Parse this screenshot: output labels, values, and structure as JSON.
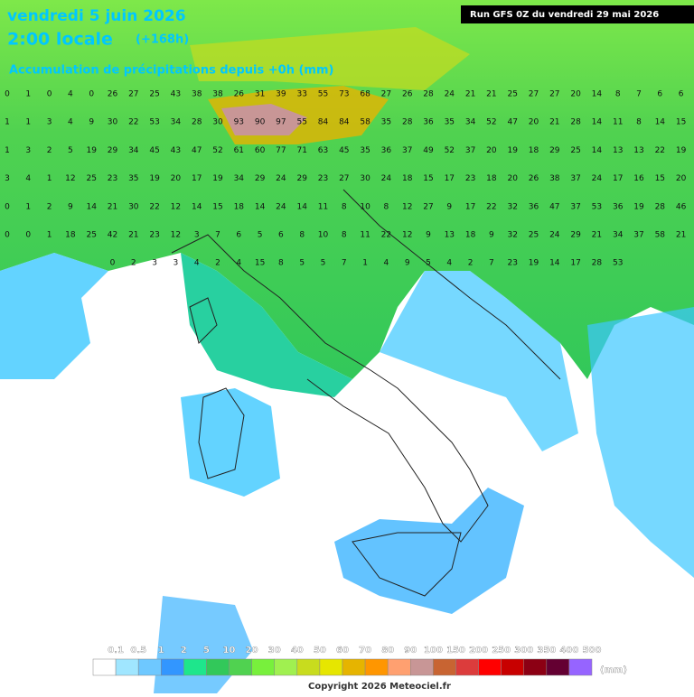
{
  "header": {
    "date": "vendredi 5 juin 2026",
    "time": "2:00 locale",
    "lead": "(+168h)",
    "subtitle": "Accumulation de précipitations depuis +0h (mm)",
    "run": "Run GFS 0Z du vendredi 29 mai 2026"
  },
  "map": {
    "grid_rows": [
      [
        0,
        1,
        0,
        4,
        0,
        26,
        27,
        25,
        43,
        38,
        38,
        26,
        31,
        39,
        33,
        55,
        73,
        68,
        27,
        26,
        28,
        24,
        21,
        21,
        25,
        27,
        27,
        20,
        14,
        8,
        7,
        6,
        6
      ],
      [
        1,
        1,
        3,
        4,
        9,
        30,
        22,
        53,
        34,
        28,
        30,
        93,
        90,
        97,
        55,
        84,
        84,
        58,
        35,
        28,
        36,
        35,
        34,
        52,
        47,
        20,
        21,
        28,
        14,
        11,
        8,
        14,
        15
      ],
      [
        1,
        3,
        2,
        5,
        19,
        29,
        34,
        45,
        43,
        47,
        52,
        61,
        60,
        77,
        71,
        63,
        45,
        35,
        36,
        37,
        49,
        52,
        37,
        20,
        19,
        18,
        29,
        25,
        14,
        13,
        13,
        22,
        19
      ],
      [
        3,
        4,
        1,
        12,
        25,
        23,
        35,
        19,
        20,
        17,
        19,
        34,
        29,
        24,
        29,
        23,
        27,
        30,
        24,
        18,
        15,
        17,
        23,
        18,
        20,
        26,
        38,
        37,
        24,
        17,
        16,
        15,
        20
      ],
      [
        0,
        1,
        2,
        9,
        14,
        21,
        30,
        22,
        12,
        14,
        15,
        18,
        14,
        24,
        14,
        11,
        8,
        10,
        8,
        12,
        27,
        9,
        17,
        22,
        32,
        36,
        47,
        37,
        53,
        36,
        19,
        28,
        46
      ],
      [
        0,
        0,
        1,
        18,
        25,
        42,
        21,
        23,
        12,
        3,
        7,
        6,
        5,
        6,
        8,
        10,
        8,
        11,
        22,
        12,
        9,
        13,
        18,
        9,
        32,
        25,
        24,
        29,
        21,
        34,
        37,
        58,
        21
      ],
      [
        null,
        null,
        null,
        null,
        null,
        0,
        2,
        3,
        3,
        4,
        2,
        4,
        15,
        8,
        5,
        5,
        7,
        1,
        4,
        9,
        5,
        4,
        2,
        7,
        23,
        19,
        14,
        17,
        28,
        53,
        null,
        null,
        null
      ]
    ]
  },
  "legend": {
    "labels": [
      0.1,
      0.5,
      1,
      2,
      5,
      10,
      20,
      30,
      40,
      50,
      60,
      70,
      80,
      90,
      100,
      150,
      200,
      250,
      300,
      350,
      400,
      500
    ],
    "colors": [
      "#ffffff",
      "#a0e6ff",
      "#6ec8ff",
      "#3296ff",
      "#1ee68c",
      "#32c85a",
      "#50d250",
      "#78f03c",
      "#a0f050",
      "#c8dc1e",
      "#e6e600",
      "#e6b400",
      "#ff9600",
      "#ffa070",
      "#c89696",
      "#c86432",
      "#dc3c3c",
      "#ff0000",
      "#c80000",
      "#8c0014",
      "#640032",
      "#9664ff"
    ],
    "unit": "(mm)"
  },
  "footer": {
    "copyright": "Copyright 2026 Meteociel.fr"
  }
}
